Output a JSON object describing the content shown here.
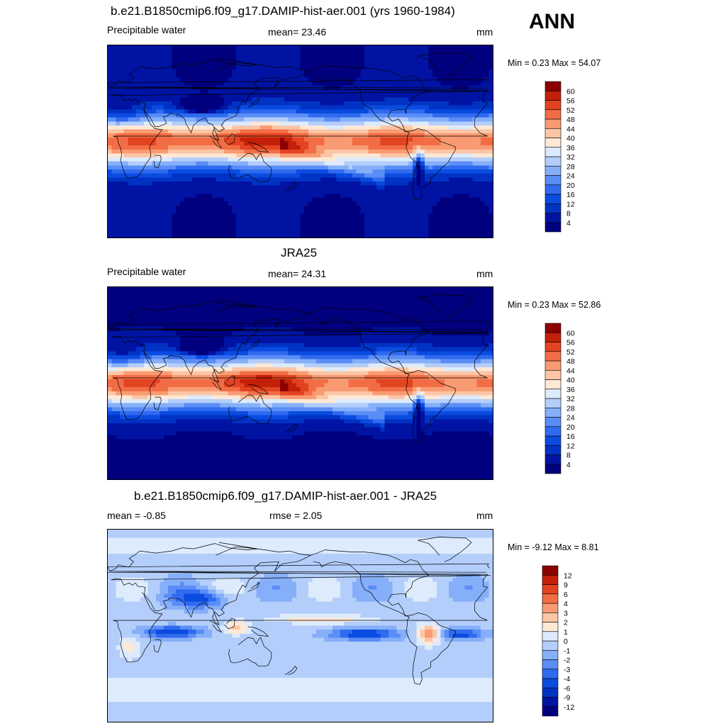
{
  "season": "ANN",
  "panels": [
    {
      "title": "b.e21.B1850cmip6.f09_g17.DAMIP-hist-aer.001 (yrs 1960-1984)",
      "left": "Precipitable water",
      "center": "mean=  23.46",
      "units": "mm",
      "minmax": "Min =   0.23 Max =  54.07",
      "kind": "abs"
    },
    {
      "title": "JRA25",
      "left": "Precipitable water",
      "center": "mean=  24.31",
      "units": "mm",
      "minmax": "Min =   0.23 Max =  52.86",
      "kind": "abs"
    },
    {
      "title": "b.e21.B1850cmip6.f09_g17.DAMIP-hist-aer.001 - JRA25",
      "left": "mean =  -0.85",
      "center": "rmse =   2.05",
      "units": "mm",
      "minmax": "Min =  -9.12 Max =   8.81",
      "kind": "diff"
    }
  ],
  "chart_data": [
    {
      "type": "heatmap",
      "title": "b.e21.B1850cmip6.f09_g17.DAMIP-hist-aer.001 (yrs 1960-1984)",
      "variable": "Precipitable water",
      "units": "mm",
      "mean": 23.46,
      "min": 0.23,
      "max": 54.07,
      "colorbar_levels": [
        4,
        8,
        12,
        16,
        20,
        24,
        28,
        32,
        36,
        40,
        44,
        48,
        52,
        56,
        60
      ],
      "colorbar_colors": [
        "#00007f",
        "#0013a3",
        "#0033c4",
        "#0a4be0",
        "#2f6aef",
        "#5a8df6",
        "#86aff9",
        "#b3cefb",
        "#ddebfc",
        "#fee8d6",
        "#fcc6a6",
        "#f99b72",
        "#f26d45",
        "#e24321",
        "#c41f08",
        "#8b0000"
      ]
    },
    {
      "type": "heatmap",
      "title": "JRA25",
      "variable": "Precipitable water",
      "units": "mm",
      "mean": 24.31,
      "min": 0.23,
      "max": 52.86,
      "colorbar_levels": [
        4,
        8,
        12,
        16,
        20,
        24,
        28,
        32,
        36,
        40,
        44,
        48,
        52,
        56,
        60
      ],
      "colorbar_colors": [
        "#00007f",
        "#0013a3",
        "#0033c4",
        "#0a4be0",
        "#2f6aef",
        "#5a8df6",
        "#86aff9",
        "#b3cefb",
        "#ddebfc",
        "#fee8d6",
        "#fcc6a6",
        "#f99b72",
        "#f26d45",
        "#e24321",
        "#c41f08",
        "#8b0000"
      ]
    },
    {
      "type": "heatmap",
      "title": "b.e21.B1850cmip6.f09_g17.DAMIP-hist-aer.001 - JRA25",
      "units": "mm",
      "mean": -0.85,
      "rmse": 2.05,
      "min": -9.12,
      "max": 8.81,
      "colorbar_levels": [
        -12,
        -9,
        -6,
        -4,
        -3,
        -2,
        -1,
        0,
        1,
        2,
        3,
        4,
        6,
        9,
        12
      ],
      "colorbar_colors": [
        "#00007f",
        "#0013a3",
        "#0033c4",
        "#0a4be0",
        "#2f6aef",
        "#5a8df6",
        "#86aff9",
        "#b3cefb",
        "#ddebfc",
        "#fee8d6",
        "#fcc6a6",
        "#f99b72",
        "#f26d45",
        "#e24321",
        "#c41f08",
        "#8b0000"
      ]
    }
  ]
}
